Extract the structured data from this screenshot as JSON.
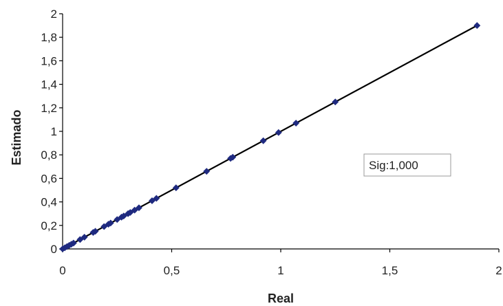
{
  "chart_data": {
    "type": "scatter",
    "title": "",
    "xlabel": "Real",
    "ylabel": "Estimado",
    "xlim": [
      0,
      2
    ],
    "ylim": [
      0,
      2
    ],
    "x_ticks": [
      "0",
      "0,5",
      "1",
      "1,5",
      "2"
    ],
    "y_ticks": [
      "0",
      "0,2",
      "0,4",
      "0,6",
      "0,8",
      "1",
      "1,2",
      "1,4",
      "1,6",
      "1,8",
      "2"
    ],
    "grid": false,
    "legend": "none",
    "marker_color": "#1f2a80",
    "line_color": "#000000",
    "trendline": {
      "x": [
        0,
        1.9
      ],
      "y": [
        0,
        1.9
      ]
    },
    "annotation": "Sig:1,000",
    "points": [
      {
        "x": 0.0,
        "y": 0.0
      },
      {
        "x": 0.01,
        "y": 0.01
      },
      {
        "x": 0.02,
        "y": 0.02
      },
      {
        "x": 0.03,
        "y": 0.03
      },
      {
        "x": 0.04,
        "y": 0.04
      },
      {
        "x": 0.05,
        "y": 0.05
      },
      {
        "x": 0.08,
        "y": 0.08
      },
      {
        "x": 0.1,
        "y": 0.1
      },
      {
        "x": 0.14,
        "y": 0.14
      },
      {
        "x": 0.15,
        "y": 0.15
      },
      {
        "x": 0.19,
        "y": 0.19
      },
      {
        "x": 0.21,
        "y": 0.21
      },
      {
        "x": 0.22,
        "y": 0.22
      },
      {
        "x": 0.25,
        "y": 0.25
      },
      {
        "x": 0.27,
        "y": 0.27
      },
      {
        "x": 0.28,
        "y": 0.28
      },
      {
        "x": 0.3,
        "y": 0.3
      },
      {
        "x": 0.31,
        "y": 0.31
      },
      {
        "x": 0.33,
        "y": 0.33
      },
      {
        "x": 0.35,
        "y": 0.35
      },
      {
        "x": 0.41,
        "y": 0.41
      },
      {
        "x": 0.43,
        "y": 0.43
      },
      {
        "x": 0.52,
        "y": 0.52
      },
      {
        "x": 0.66,
        "y": 0.66
      },
      {
        "x": 0.77,
        "y": 0.77
      },
      {
        "x": 0.78,
        "y": 0.78
      },
      {
        "x": 0.92,
        "y": 0.92
      },
      {
        "x": 0.99,
        "y": 0.99
      },
      {
        "x": 1.07,
        "y": 1.07
      },
      {
        "x": 1.25,
        "y": 1.25
      },
      {
        "x": 1.9,
        "y": 1.9
      }
    ]
  }
}
